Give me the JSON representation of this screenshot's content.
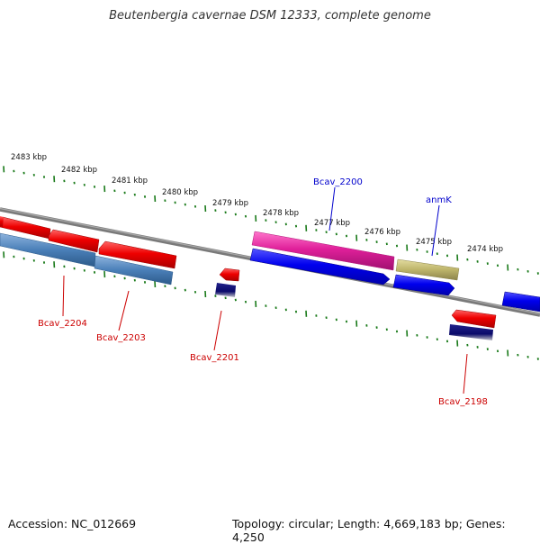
{
  "title": "Beutenbergia cavernae DSM 12333, complete genome",
  "footer": {
    "accession": "Accession: NC_012669",
    "summary": "Topology: circular; Length: 4,669,183 bp; Genes: 4,250"
  },
  "scale_labels": [
    "2483 kbp",
    "2482 kbp",
    "2481 kbp",
    "2480 kbp",
    "2479 kbp",
    "2478 kbp",
    "2477 kbp",
    "2476 kbp",
    "2475 kbp",
    "2474 kbp"
  ],
  "gene_labels": {
    "bcav_2200": "Bcav_2200",
    "anmk": "anmK",
    "bcav_2204": "Bcav_2204",
    "bcav_2203": "Bcav_2203",
    "bcav_2201": "Bcav_2201",
    "bcav_2198": "Bcav_2198"
  },
  "colors": {
    "background": "#ffffff",
    "backbone": "#7a7a7a",
    "tick": "#1a7a1a",
    "label_forward": "#0000cc",
    "label_reverse": "#cc0000",
    "gene_red": "#e60000",
    "gene_blue": "#0000ee",
    "gene_steelblue": "#4a7fb8",
    "gene_magenta": "#e0209a",
    "gene_olive": "#bdb46a",
    "gene_navy": "#0a0a6a"
  }
}
